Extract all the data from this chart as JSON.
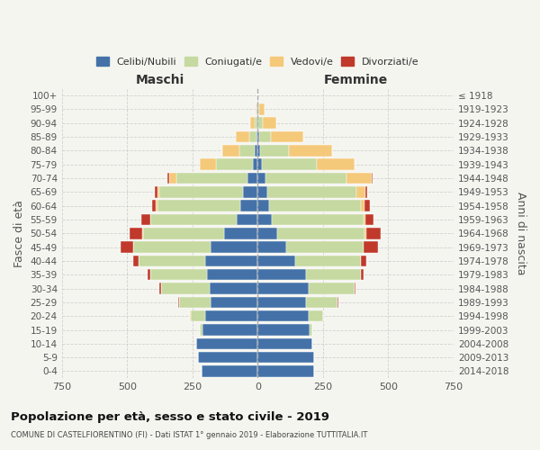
{
  "age_groups": [
    "0-4",
    "5-9",
    "10-14",
    "15-19",
    "20-24",
    "25-29",
    "30-34",
    "35-39",
    "40-44",
    "45-49",
    "50-54",
    "55-59",
    "60-64",
    "65-69",
    "70-74",
    "75-79",
    "80-84",
    "85-89",
    "90-94",
    "95-99",
    "100+"
  ],
  "birth_years": [
    "2014-2018",
    "2009-2013",
    "2004-2008",
    "1999-2003",
    "1994-1998",
    "1989-1993",
    "1984-1988",
    "1979-1983",
    "1974-1978",
    "1969-1973",
    "1964-1968",
    "1959-1963",
    "1954-1958",
    "1949-1953",
    "1944-1948",
    "1939-1943",
    "1934-1938",
    "1929-1933",
    "1924-1928",
    "1919-1923",
    "≤ 1918"
  ],
  "maschi": {
    "celibi": [
      215,
      230,
      235,
      210,
      200,
      180,
      185,
      195,
      200,
      180,
      130,
      80,
      65,
      55,
      40,
      18,
      10,
      5,
      2,
      1,
      0
    ],
    "coniugati": [
      0,
      0,
      0,
      12,
      55,
      120,
      185,
      215,
      255,
      295,
      310,
      330,
      320,
      320,
      270,
      140,
      60,
      28,
      8,
      3,
      0
    ],
    "vedovi": [
      0,
      0,
      0,
      0,
      5,
      0,
      0,
      0,
      0,
      1,
      1,
      2,
      5,
      10,
      30,
      65,
      65,
      50,
      20,
      5,
      0
    ],
    "divorziati": [
      0,
      0,
      0,
      0,
      0,
      3,
      5,
      10,
      20,
      50,
      50,
      35,
      15,
      8,
      5,
      0,
      0,
      0,
      0,
      0,
      0
    ]
  },
  "femmine": {
    "nubili": [
      215,
      215,
      210,
      200,
      195,
      185,
      195,
      185,
      145,
      110,
      75,
      55,
      45,
      38,
      30,
      15,
      10,
      5,
      3,
      2,
      0
    ],
    "coniugate": [
      0,
      0,
      0,
      10,
      55,
      120,
      175,
      210,
      250,
      295,
      335,
      350,
      350,
      340,
      310,
      210,
      110,
      45,
      15,
      5,
      0
    ],
    "vedove": [
      0,
      0,
      0,
      0,
      0,
      0,
      0,
      0,
      0,
      2,
      5,
      8,
      15,
      35,
      95,
      145,
      165,
      125,
      55,
      20,
      0
    ],
    "divorziate": [
      0,
      0,
      0,
      0,
      0,
      3,
      5,
      10,
      20,
      55,
      55,
      30,
      20,
      8,
      5,
      0,
      0,
      0,
      0,
      0,
      0
    ]
  },
  "colors": {
    "celibi": "#4472a8",
    "coniugati": "#c5d9a0",
    "vedovi": "#f5c97a",
    "divorziati": "#c0392b"
  },
  "xlim": 750,
  "title": "Popolazione per età, sesso e stato civile - 2019",
  "subtitle": "COMUNE DI CASTELFIORENTINO (FI) - Dati ISTAT 1° gennaio 2019 - Elaborazione TUTTITALIA.IT",
  "ylabel": "Fasce di età",
  "ylabel_right": "Anni di nascita",
  "maschi_label": "Maschi",
  "femmine_label": "Femmine",
  "legend_labels": [
    "Celibi/Nubili",
    "Coniugati/e",
    "Vedovi/e",
    "Divorziati/e"
  ],
  "background_color": "#f5f5f0",
  "grid_color": "#cccccc",
  "xticks": [
    -750,
    -500,
    -250,
    0,
    250,
    500,
    750
  ]
}
